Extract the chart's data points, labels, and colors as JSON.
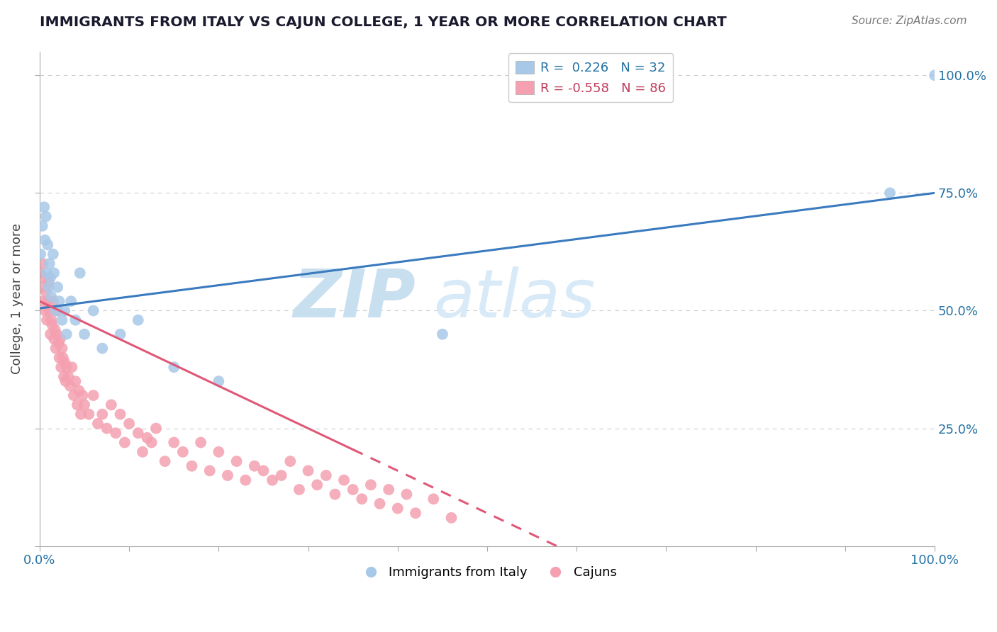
{
  "title": "IMMIGRANTS FROM ITALY VS CAJUN COLLEGE, 1 YEAR OR MORE CORRELATION CHART",
  "source": "Source: ZipAtlas.com",
  "ylabel": "College, 1 year or more",
  "xlim": [
    0.0,
    1.0
  ],
  "ylim": [
    0.0,
    1.05
  ],
  "blue_color": "#a8c8e8",
  "pink_color": "#f4a0b0",
  "line_blue": "#3a7abf",
  "line_pink": "#e05878",
  "background_color": "#ffffff",
  "grid_color": "#cccccc",
  "watermark_zip": "ZIP",
  "watermark_atlas": "atlas",
  "italy_x": [
    0.001,
    0.003,
    0.005,
    0.006,
    0.007,
    0.008,
    0.009,
    0.01,
    0.011,
    0.012,
    0.013,
    0.015,
    0.016,
    0.018,
    0.02,
    0.022,
    0.025,
    0.028,
    0.03,
    0.035,
    0.04,
    0.045,
    0.05,
    0.06,
    0.07,
    0.09,
    0.11,
    0.15,
    0.2,
    0.45,
    0.95,
    1.0
  ],
  "italy_y": [
    0.62,
    0.68,
    0.72,
    0.65,
    0.7,
    0.58,
    0.64,
    0.55,
    0.6,
    0.57,
    0.53,
    0.62,
    0.58,
    0.5,
    0.55,
    0.52,
    0.48,
    0.5,
    0.45,
    0.52,
    0.48,
    0.58,
    0.45,
    0.5,
    0.42,
    0.45,
    0.48,
    0.38,
    0.35,
    0.45,
    0.75,
    1.0
  ],
  "cajun_x": [
    0.001,
    0.002,
    0.003,
    0.004,
    0.005,
    0.006,
    0.007,
    0.008,
    0.009,
    0.01,
    0.011,
    0.012,
    0.013,
    0.014,
    0.015,
    0.016,
    0.017,
    0.018,
    0.019,
    0.02,
    0.021,
    0.022,
    0.023,
    0.024,
    0.025,
    0.026,
    0.027,
    0.028,
    0.029,
    0.03,
    0.032,
    0.034,
    0.036,
    0.038,
    0.04,
    0.042,
    0.044,
    0.046,
    0.048,
    0.05,
    0.055,
    0.06,
    0.065,
    0.07,
    0.075,
    0.08,
    0.085,
    0.09,
    0.095,
    0.1,
    0.11,
    0.115,
    0.12,
    0.125,
    0.13,
    0.14,
    0.15,
    0.16,
    0.17,
    0.18,
    0.19,
    0.2,
    0.21,
    0.22,
    0.23,
    0.24,
    0.25,
    0.26,
    0.27,
    0.28,
    0.29,
    0.3,
    0.31,
    0.32,
    0.33,
    0.34,
    0.35,
    0.36,
    0.37,
    0.38,
    0.39,
    0.4,
    0.41,
    0.42,
    0.44,
    0.46
  ],
  "cajun_y": [
    0.58,
    0.55,
    0.6,
    0.52,
    0.57,
    0.5,
    0.54,
    0.48,
    0.52,
    0.56,
    0.5,
    0.45,
    0.48,
    0.47,
    0.52,
    0.44,
    0.46,
    0.42,
    0.45,
    0.5,
    0.43,
    0.4,
    0.44,
    0.38,
    0.42,
    0.4,
    0.36,
    0.39,
    0.35,
    0.38,
    0.36,
    0.34,
    0.38,
    0.32,
    0.35,
    0.3,
    0.33,
    0.28,
    0.32,
    0.3,
    0.28,
    0.32,
    0.26,
    0.28,
    0.25,
    0.3,
    0.24,
    0.28,
    0.22,
    0.26,
    0.24,
    0.2,
    0.23,
    0.22,
    0.25,
    0.18,
    0.22,
    0.2,
    0.17,
    0.22,
    0.16,
    0.2,
    0.15,
    0.18,
    0.14,
    0.17,
    0.16,
    0.14,
    0.15,
    0.18,
    0.12,
    0.16,
    0.13,
    0.15,
    0.11,
    0.14,
    0.12,
    0.1,
    0.13,
    0.09,
    0.12,
    0.08,
    0.11,
    0.07,
    0.1,
    0.06
  ]
}
